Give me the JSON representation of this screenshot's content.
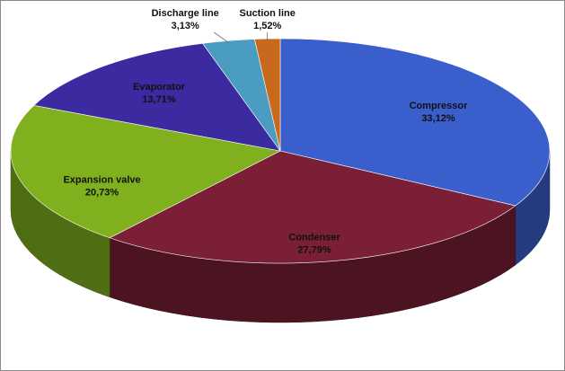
{
  "chart_data": {
    "type": "pie",
    "style": "3d",
    "categories": [
      "Compressor",
      "Condenser",
      "Expansion valve",
      "Evaporator",
      "Discharge line",
      "Suction line"
    ],
    "values": [
      33.12,
      27.79,
      20.73,
      13.71,
      3.13,
      1.52
    ],
    "value_labels": [
      "33,12%",
      "27,79%",
      "20,73%",
      "13,71%",
      "3,13%",
      "1,52%"
    ],
    "colors": [
      "#3a5fcd",
      "#7a1f35",
      "#80b01e",
      "#3b2aa0",
      "#4a9cc0",
      "#c8691e"
    ]
  }
}
